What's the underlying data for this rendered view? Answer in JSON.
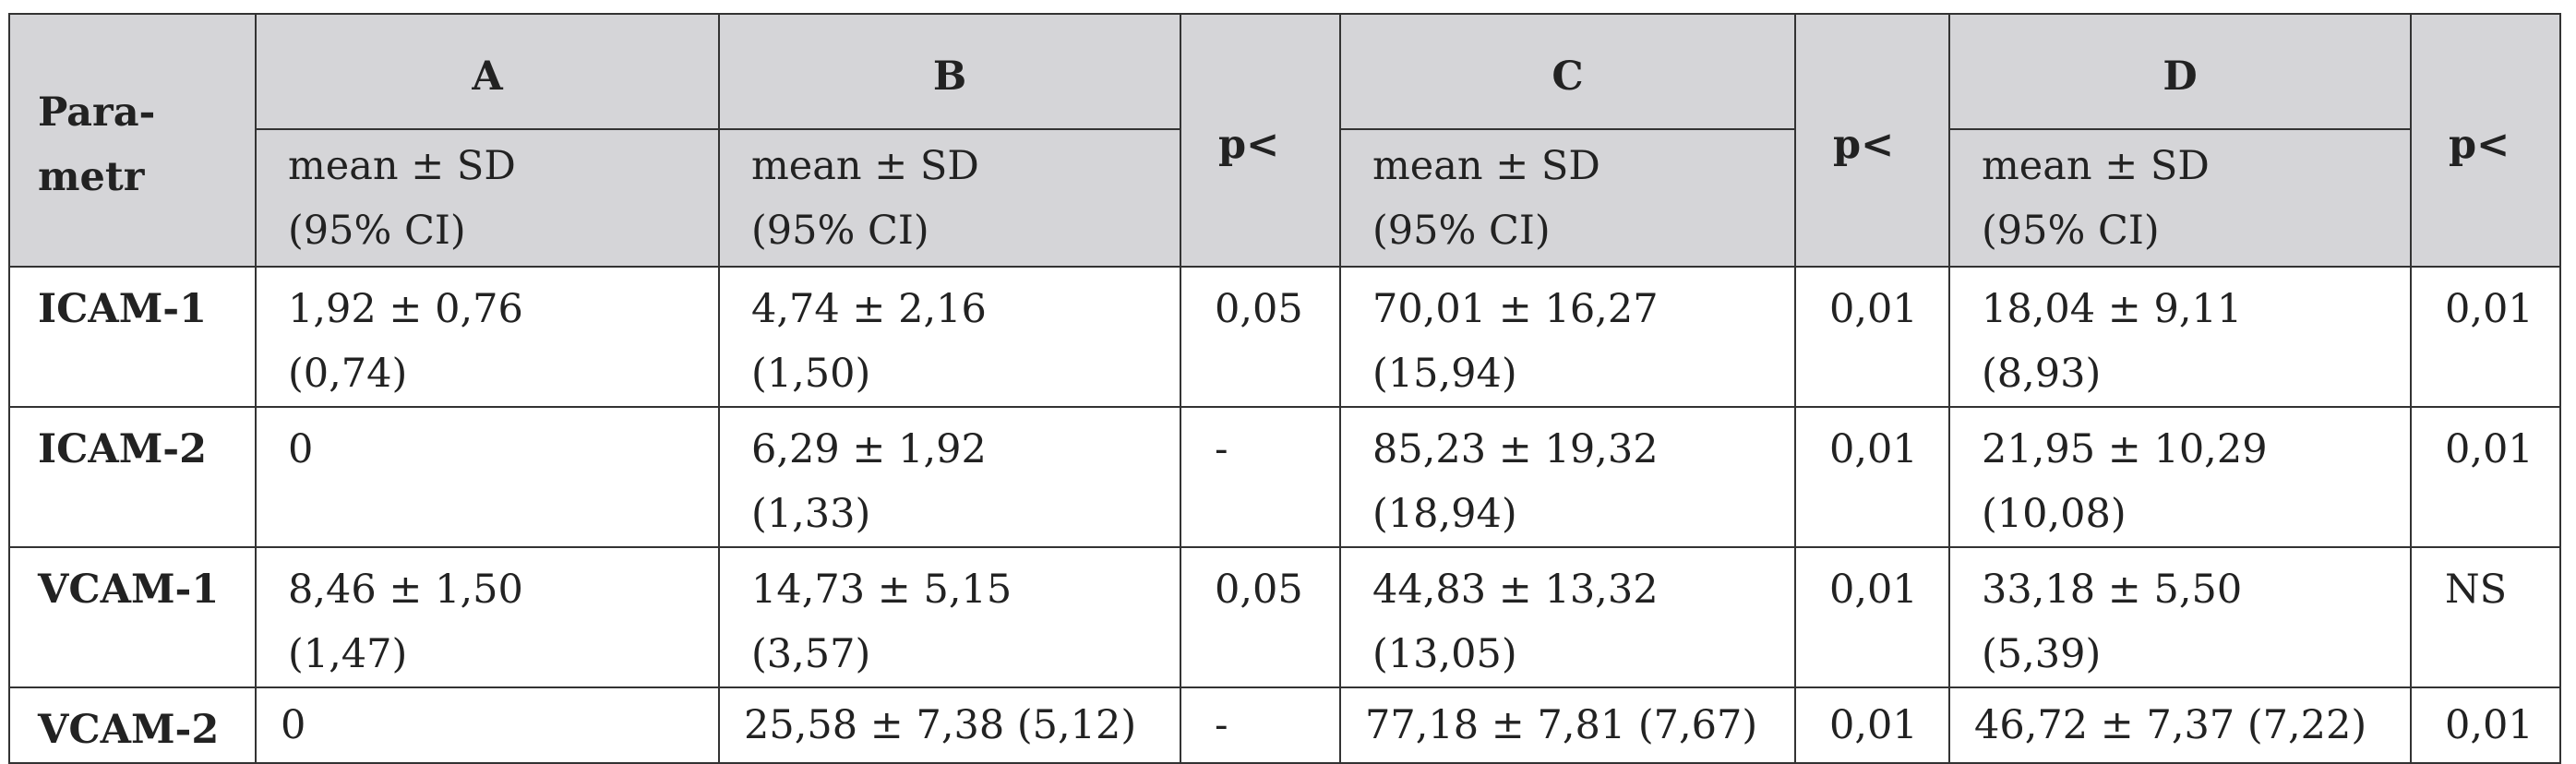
{
  "table": {
    "header": {
      "parameter": [
        "Para-",
        "metr"
      ],
      "groups": [
        "A",
        "B",
        "C",
        "D"
      ],
      "p_labels": [
        "p<",
        "p<",
        "p<"
      ],
      "subheaders": [
        [
          "mean ± SD",
          "(95% CI)"
        ],
        [
          "mean ± SD",
          "(95% CI)"
        ],
        [
          "mean ± SD",
          "(95% CI)"
        ],
        [
          "mean ± SD",
          "(95% CI)"
        ]
      ]
    },
    "rows": [
      {
        "parameter": "ICAM-1",
        "cells": [
          [
            "1,92 ± 0,76",
            "(0,74)"
          ],
          [
            "4,74 ± 2,16",
            "(1,50)"
          ],
          [
            "0,05"
          ],
          [
            "70,01 ± 16,27",
            "(15,94)"
          ],
          [
            "0,01"
          ],
          [
            "18,04 ± 9,11",
            "(8,93)"
          ],
          [
            "0,01"
          ]
        ]
      },
      {
        "parameter": "ICAM-2",
        "cells": [
          [
            "0"
          ],
          [
            "6,29 ± 1,92",
            "(1,33)"
          ],
          [
            "-"
          ],
          [
            "85,23 ± 19,32",
            "(18,94)"
          ],
          [
            "0,01"
          ],
          [
            "21,95 ± 10,29",
            "(10,08)"
          ],
          [
            "0,01"
          ]
        ]
      },
      {
        "parameter": "VCAM-1",
        "cells": [
          [
            "8,46 ± 1,50",
            "(1,47)"
          ],
          [
            "14,73 ± 5,15",
            "(3,57)"
          ],
          [
            "0,05"
          ],
          [
            "44,83 ± 13,32",
            "(13,05)"
          ],
          [
            "0,01"
          ],
          [
            "33,18 ± 5,50",
            "(5,39)"
          ],
          [
            "NS"
          ]
        ]
      },
      {
        "parameter": "VCAM-2",
        "cells": [
          [
            "0"
          ],
          [
            "25,58 ± 7,38 (5,12)"
          ],
          [
            "-"
          ],
          [
            "77,18 ± 7,81 (7,67)"
          ],
          [
            "0,01"
          ],
          [
            "46,72 ± 7,37 (7,22)"
          ],
          [
            "0,01"
          ]
        ]
      }
    ]
  }
}
